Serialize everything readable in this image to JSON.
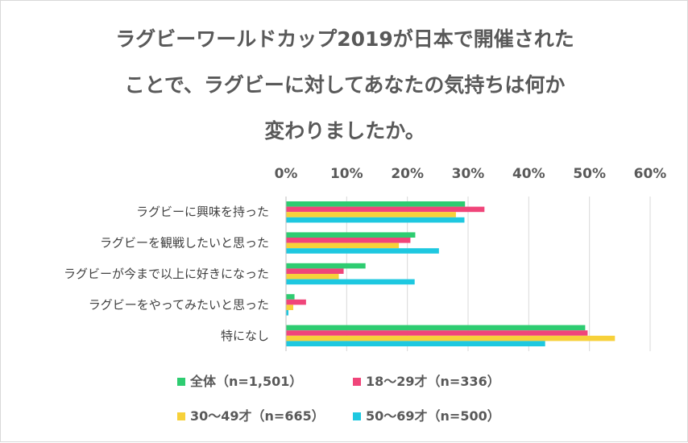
{
  "title_lines": [
    "ラグビーワールドカップ2019が日本で開催された",
    "ことで、ラグビーに対してあなたの気持ちは何か",
    "変わりましたか。"
  ],
  "chart_data": {
    "type": "bar",
    "orientation": "horizontal",
    "title": "ラグビーワールドカップ2019が日本で開催されたことで、ラグビーに対してあなたの気持ちは何か変わりましたか。",
    "categories": [
      "ラグビーに興味を持った",
      "ラグビーを観戦したいと思った",
      "ラグビーが今まで以上に好きになった",
      "ラグビーをやってみたいと思った",
      "特になし"
    ],
    "series": [
      {
        "name": "全体（n=1,501）",
        "color": "#2ecc71",
        "values": [
          29.5,
          21.3,
          13.1,
          1.4,
          49.3
        ]
      },
      {
        "name": "18～29才（n=336）",
        "color": "#f0457a",
        "values": [
          32.7,
          20.5,
          9.5,
          3.3,
          49.7
        ]
      },
      {
        "name": "30～49才（n=665）",
        "color": "#f7d13a",
        "values": [
          28.0,
          18.6,
          8.7,
          1.2,
          54.2
        ]
      },
      {
        "name": "50～69才（n=500）",
        "color": "#1ec8e0",
        "values": [
          29.4,
          25.2,
          21.2,
          0.4,
          42.7
        ]
      }
    ],
    "xlim": [
      0,
      60
    ],
    "xticks": [
      "0%",
      "10%",
      "20%",
      "30%",
      "40%",
      "50%",
      "60%"
    ],
    "xaxis_position": "top",
    "grid": true,
    "legend_position": "bottom"
  }
}
